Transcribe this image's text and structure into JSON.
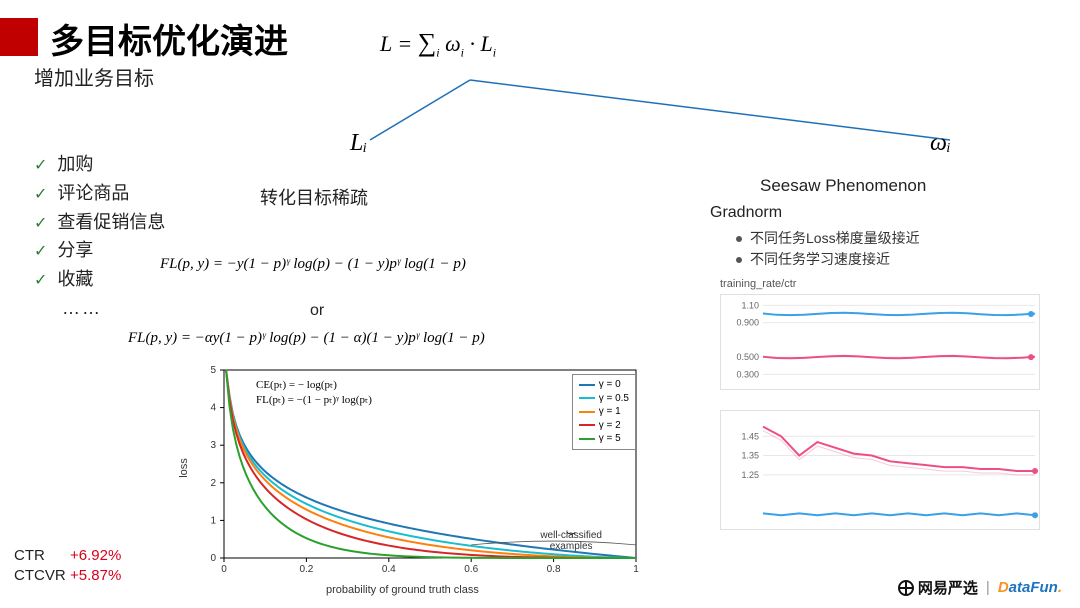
{
  "title": "多目标优化演进",
  "subtitle": "增加业务目标",
  "checklist": [
    "加购",
    "评论商品",
    "查看促销信息",
    "分享",
    "收藏"
  ],
  "dots": "……",
  "top_formula": "L = ∑ᵢ ωᵢ · Lᵢ",
  "node_left": "Lᵢ",
  "node_right": "ωᵢ",
  "left_col_title": "转化目标稀疏",
  "formula_1": "FL(p, y) = −y(1 − p)ᵞ log(p) − (1 − y)pᵞ log(1 − p)",
  "or_text": "or",
  "formula_2": "FL(p, y) = −αy(1 − p)ᵞ log(p) − (1 − α)(1 − y)pᵞ log(1 − p)",
  "chart": {
    "type": "line",
    "xlabel": "probability of ground truth class",
    "ylabel": "loss",
    "xlim": [
      0,
      1
    ],
    "ylim": [
      0,
      5
    ],
    "xticks": [
      0,
      0.2,
      0.4,
      0.6,
      0.8,
      1
    ],
    "yticks": [
      0,
      1,
      2,
      3,
      4,
      5
    ],
    "inset_lines": [
      "CE(pₜ) = − log(pₜ)",
      "FL(pₜ) = −(1 − pₜ)ᵞ log(pₜ)"
    ],
    "well_classified": "well-classified\nexamples",
    "legend": [
      {
        "label": "γ = 0",
        "color": "#1f77b4"
      },
      {
        "label": "γ = 0.5",
        "color": "#17becf"
      },
      {
        "label": "γ = 1",
        "color": "#ff7f0e"
      },
      {
        "label": "γ = 2",
        "color": "#d62728"
      },
      {
        "label": "γ = 5",
        "color": "#2ca02c"
      }
    ],
    "line_colors": [
      "#1f77b4",
      "#17becf",
      "#ff7f0e",
      "#d62728",
      "#2ca02c"
    ],
    "line_width": 2,
    "background_color": "#ffffff",
    "grid_color": "#cccccc"
  },
  "seesaw": "Seesaw Phenomenon",
  "gradnorm": "Gradnorm",
  "grad_list": [
    "不同任务Loss梯度量级接近",
    "不同任务学习速度接近"
  ],
  "train_rate_label": "training_rate/ctr",
  "mini1": {
    "type": "line",
    "yticks": [
      "0.300",
      "0.500",
      "0.900",
      "1.10"
    ],
    "series": [
      {
        "color": "#3aa0e8",
        "y": 1.0
      },
      {
        "color": "#ec4f82",
        "y": 0.5
      }
    ],
    "grid_color": "#e8e8e8"
  },
  "mini2": {
    "type": "line",
    "yticks": [
      "1.25",
      "1.35",
      "1.45"
    ],
    "pink_color": "#ec4f82",
    "blue_color": "#3aa0e8",
    "grid_color": "#e8e8e8",
    "pink_points": [
      1.5,
      1.45,
      1.35,
      1.42,
      1.39,
      1.36,
      1.35,
      1.32,
      1.31,
      1.3,
      1.29,
      1.29,
      1.28,
      1.28,
      1.27,
      1.27
    ],
    "blue_points": [
      1.05,
      1.04,
      1.05,
      1.04,
      1.05,
      1.04,
      1.05,
      1.04,
      1.05,
      1.04,
      1.05,
      1.04,
      1.05,
      1.04,
      1.05,
      1.04
    ]
  },
  "metrics": {
    "ctr_label": "CTR",
    "ctr_val": "+6.92%",
    "ctcvr_label": "CTCVR",
    "ctcvr_val": "+5.87%"
  },
  "footer": {
    "yanxuan": "网易严选",
    "sep": "|",
    "datafun_d": "D",
    "datafun_rest": "ataFun",
    "datafun_dot": "."
  },
  "tree_color": "#1f6fb5"
}
